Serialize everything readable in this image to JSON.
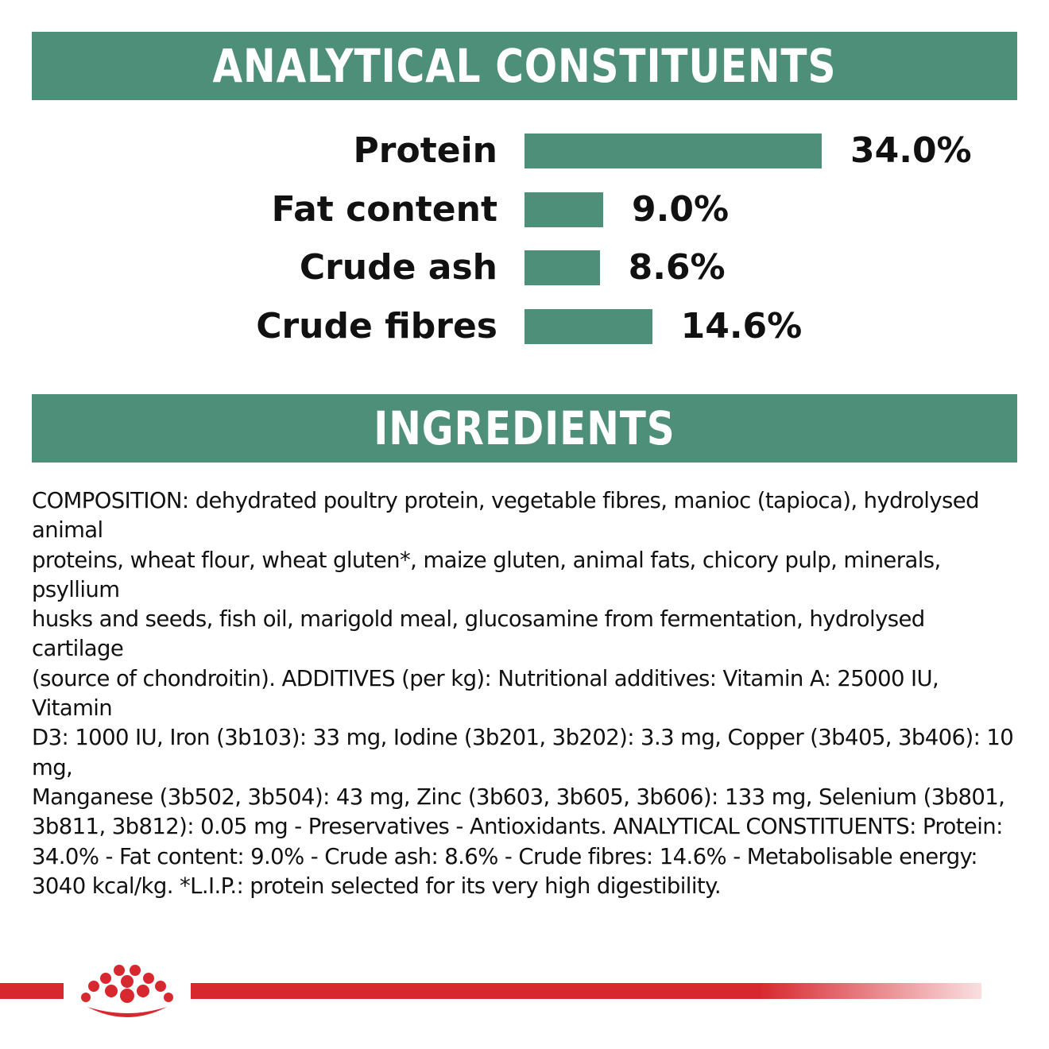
{
  "colors": {
    "accent": "#4e8f79",
    "brand_red": "#d7282f",
    "text": "#111111"
  },
  "header": {
    "analytical_title": "ANALYTICAL CONSTITUENTS",
    "ingredients_title": "INGREDIENTS"
  },
  "chart_data": {
    "type": "bar",
    "orientation": "horizontal",
    "title": "ANALYTICAL CONSTITUENTS",
    "categories": [
      "Protein",
      "Fat content",
      "Crude ash",
      "Crude fibres"
    ],
    "values": [
      34.0,
      9.0,
      8.6,
      14.6
    ],
    "value_labels": [
      "34.0%",
      "9.0%",
      "8.6%",
      "14.6%"
    ],
    "unit": "%",
    "grid": false,
    "legend": "none"
  },
  "composition_lines": [
    "COMPOSITION: dehydrated poultry protein, vegetable fibres, manioc (tapioca), hydrolysed animal",
    "proteins, wheat flour, wheat gluten*, maize gluten, animal fats, chicory pulp, minerals, psyllium",
    "husks and seeds, fish oil, marigold meal, glucosamine from fermentation, hydrolysed cartilage",
    "(source of chondroitin). ADDITIVES (per kg): Nutritional additives: Vitamin A: 25000 IU, Vitamin",
    "D3: 1000 IU, Iron (3b103): 33 mg, Iodine (3b201, 3b202): 3.3 mg, Copper (3b405, 3b406): 10 mg,",
    "Manganese (3b502, 3b504): 43 mg, Zinc (3b603, 3b605, 3b606): 133 mg, Selenium (3b801,",
    "3b811, 3b812): 0.05 mg - Preservatives - Antioxidants. ANALYTICAL CONSTITUENTS: Protein:",
    "34.0% - Fat content: 9.0% - Crude ash: 8.6% - Crude fibres: 14.6% - Metabolisable energy:",
    "3040 kcal/kg. *L.I.P.: protein selected for its very high digestibility."
  ],
  "footer": {
    "logo_icon": "crown-icon"
  }
}
